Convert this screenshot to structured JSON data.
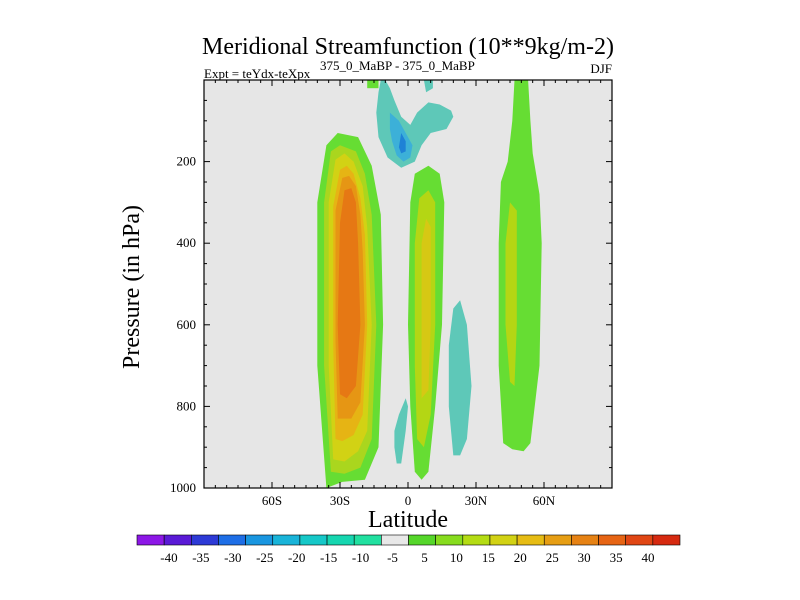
{
  "chart_data": {
    "type": "contour",
    "title": "Meridional Streamfunction (10**9kg/m-2)",
    "subtitle_left": "Expt = teYdx-teXpx",
    "subtitle_super": "375_0_MaBP - 375_0_MaBP",
    "subtitle_right": "DJF",
    "xlabel": "Latitude",
    "ylabel": "Pressure (in hPa)",
    "x_ticks": [
      {
        "value": -60,
        "label": "60S"
      },
      {
        "value": -30,
        "label": "30S"
      },
      {
        "value": 0,
        "label": "0"
      },
      {
        "value": 30,
        "label": "30N"
      },
      {
        "value": 60,
        "label": "60N"
      }
    ],
    "y_ticks": [
      {
        "value": 200,
        "label": "200"
      },
      {
        "value": 400,
        "label": "400"
      },
      {
        "value": 600,
        "label": "600"
      },
      {
        "value": 800,
        "label": "800"
      },
      {
        "value": 1000,
        "label": "1000"
      }
    ],
    "xlim": [
      -90,
      90
    ],
    "ylim": [
      1000,
      0
    ],
    "background_color": "#e6e6e6",
    "colorbar": {
      "colors": [
        "#8c17e6",
        "#5a1ad6",
        "#2d3ad6",
        "#1e6ee6",
        "#1996e0",
        "#19b4d9",
        "#16c8c8",
        "#16d6b0",
        "#21e0a0",
        "#e8e8e8",
        "#55d62a",
        "#87dc1e",
        "#b4dc14",
        "#d2d214",
        "#e6bc14",
        "#e69e14",
        "#e68214",
        "#e66414",
        "#e04614",
        "#d62a10"
      ],
      "labels": [
        "-40",
        "-35",
        "-30",
        "-25",
        "-20",
        "-15",
        "-10",
        "-5",
        "5",
        "10",
        "15",
        "20",
        "25",
        "30",
        "35",
        "40"
      ]
    },
    "regions": [
      {
        "color": "#66dd33",
        "points": [
          [
            -36,
            1000
          ],
          [
            -40,
            700
          ],
          [
            -40,
            300
          ],
          [
            -36,
            160
          ],
          [
            -31,
            130
          ],
          [
            -22,
            140
          ],
          [
            -16,
            210
          ],
          [
            -12,
            330
          ],
          [
            -11,
            600
          ],
          [
            -13,
            900
          ],
          [
            -19,
            980
          ],
          [
            -29,
            985
          ]
        ]
      },
      {
        "color": "#aad61e",
        "points": [
          [
            -34,
            960
          ],
          [
            -37,
            700
          ],
          [
            -37,
            300
          ],
          [
            -34,
            175
          ],
          [
            -30,
            160
          ],
          [
            -23,
            175
          ],
          [
            -19,
            230
          ],
          [
            -16,
            330
          ],
          [
            -14,
            600
          ],
          [
            -16,
            880
          ],
          [
            -21,
            950
          ],
          [
            -28,
            965
          ]
        ]
      },
      {
        "color": "#d2d214",
        "points": [
          [
            -33,
            930
          ],
          [
            -35,
            700
          ],
          [
            -35,
            300
          ],
          [
            -32,
            195
          ],
          [
            -28,
            180
          ],
          [
            -24,
            200
          ],
          [
            -20,
            260
          ],
          [
            -18,
            360
          ],
          [
            -16,
            600
          ],
          [
            -18,
            860
          ],
          [
            -22,
            910
          ],
          [
            -28,
            935
          ]
        ]
      },
      {
        "color": "#e6b414",
        "points": [
          [
            -32,
            880
          ],
          [
            -33,
            650
          ],
          [
            -33,
            310
          ],
          [
            -30,
            220
          ],
          [
            -27,
            210
          ],
          [
            -24,
            230
          ],
          [
            -21,
            290
          ],
          [
            -19,
            380
          ],
          [
            -18,
            600
          ],
          [
            -20,
            820
          ],
          [
            -24,
            870
          ],
          [
            -29,
            885
          ]
        ]
      },
      {
        "color": "#e69614",
        "points": [
          [
            -31,
            830
          ],
          [
            -32,
            640
          ],
          [
            -32,
            320
          ],
          [
            -29,
            240
          ],
          [
            -26,
            235
          ],
          [
            -23,
            260
          ],
          [
            -21,
            330
          ],
          [
            -20,
            420
          ],
          [
            -19,
            600
          ],
          [
            -21,
            790
          ],
          [
            -25,
            830
          ]
        ]
      },
      {
        "color": "#e67814",
        "points": [
          [
            -30,
            770
          ],
          [
            -31,
            600
          ],
          [
            -30,
            350
          ],
          [
            -28,
            270
          ],
          [
            -25,
            265
          ],
          [
            -23,
            300
          ],
          [
            -22,
            400
          ],
          [
            -21,
            600
          ],
          [
            -23,
            750
          ],
          [
            -27,
            780
          ]
        ]
      },
      {
        "color": "#66dd33",
        "points": [
          [
            3,
            960
          ],
          [
            1,
            800
          ],
          [
            0,
            600
          ],
          [
            1,
            300
          ],
          [
            3,
            230
          ],
          [
            9,
            210
          ],
          [
            14,
            230
          ],
          [
            16,
            300
          ],
          [
            15,
            600
          ],
          [
            12,
            800
          ],
          [
            9,
            960
          ],
          [
            6,
            980
          ]
        ]
      },
      {
        "color": "#b4d614",
        "points": [
          [
            4,
            880
          ],
          [
            3,
            700
          ],
          [
            3,
            400
          ],
          [
            5,
            290
          ],
          [
            9,
            270
          ],
          [
            12,
            300
          ],
          [
            12,
            600
          ],
          [
            10,
            820
          ],
          [
            7,
            900
          ]
        ]
      },
      {
        "color": "#d6c814",
        "points": [
          [
            6,
            780
          ],
          [
            6,
            600
          ],
          [
            6,
            400
          ],
          [
            8,
            340
          ],
          [
            10,
            360
          ],
          [
            10,
            600
          ],
          [
            9,
            760
          ]
        ]
      },
      {
        "color": "#66dd33",
        "points": [
          [
            -18,
            0
          ],
          [
            -13,
            0
          ],
          [
            -13,
            20
          ],
          [
            -18,
            20
          ]
        ]
      },
      {
        "color": "#66dd33",
        "points": [
          [
            42,
            890
          ],
          [
            40,
            700
          ],
          [
            40,
            400
          ],
          [
            41,
            250
          ],
          [
            44,
            200
          ],
          [
            46,
            100
          ],
          [
            47,
            0
          ],
          [
            53,
            0
          ],
          [
            54,
            100
          ],
          [
            55,
            180
          ],
          [
            58,
            280
          ],
          [
            59,
            400
          ],
          [
            58,
            700
          ],
          [
            54,
            890
          ],
          [
            51,
            910
          ],
          [
            46,
            905
          ]
        ]
      },
      {
        "color": "#b4d614",
        "points": [
          [
            45,
            740
          ],
          [
            43,
            600
          ],
          [
            43,
            400
          ],
          [
            45,
            300
          ],
          [
            48,
            320
          ],
          [
            48,
            600
          ],
          [
            47,
            750
          ]
        ]
      },
      {
        "color": "#5ec8b8",
        "points": [
          [
            -12,
            0
          ],
          [
            -10,
            0
          ],
          [
            -8,
            20
          ],
          [
            -6,
            50
          ],
          [
            -3,
            90
          ],
          [
            1,
            110
          ],
          [
            4,
            80
          ],
          [
            9,
            55
          ],
          [
            14,
            60
          ],
          [
            19,
            75
          ],
          [
            20,
            90
          ],
          [
            17,
            120
          ],
          [
            10,
            130
          ],
          [
            6,
            160
          ],
          [
            3,
            200
          ],
          [
            -3,
            215
          ],
          [
            -9,
            190
          ],
          [
            -13,
            140
          ],
          [
            -14,
            80
          ],
          [
            -13,
            30
          ]
        ]
      },
      {
        "color": "#3cb0d8",
        "points": [
          [
            -8,
            80
          ],
          [
            -4,
            100
          ],
          [
            -1,
            130
          ],
          [
            2,
            160
          ],
          [
            1,
            190
          ],
          [
            -2,
            200
          ],
          [
            -5,
            185
          ],
          [
            -7,
            150
          ],
          [
            -8,
            120
          ]
        ]
      },
      {
        "color": "#1e82d6",
        "points": [
          [
            -3,
            130
          ],
          [
            -1,
            150
          ],
          [
            -1,
            175
          ],
          [
            -3,
            180
          ],
          [
            -4,
            165
          ]
        ]
      },
      {
        "color": "#5ec8b8",
        "points": [
          [
            7,
            0
          ],
          [
            11,
            0
          ],
          [
            11,
            20
          ],
          [
            8,
            30
          ]
        ]
      },
      {
        "color": "#5ec8b8",
        "points": [
          [
            -6,
            860
          ],
          [
            -4,
            820
          ],
          [
            -1,
            780
          ],
          [
            0,
            800
          ],
          [
            -1,
            860
          ],
          [
            -3,
            940
          ],
          [
            -5,
            940
          ],
          [
            -6,
            900
          ]
        ]
      },
      {
        "color": "#5ec8b8",
        "points": [
          [
            20,
            920
          ],
          [
            18,
            800
          ],
          [
            18,
            650
          ],
          [
            20,
            560
          ],
          [
            23,
            540
          ],
          [
            26,
            600
          ],
          [
            28,
            750
          ],
          [
            26,
            880
          ],
          [
            23,
            920
          ]
        ]
      }
    ]
  }
}
